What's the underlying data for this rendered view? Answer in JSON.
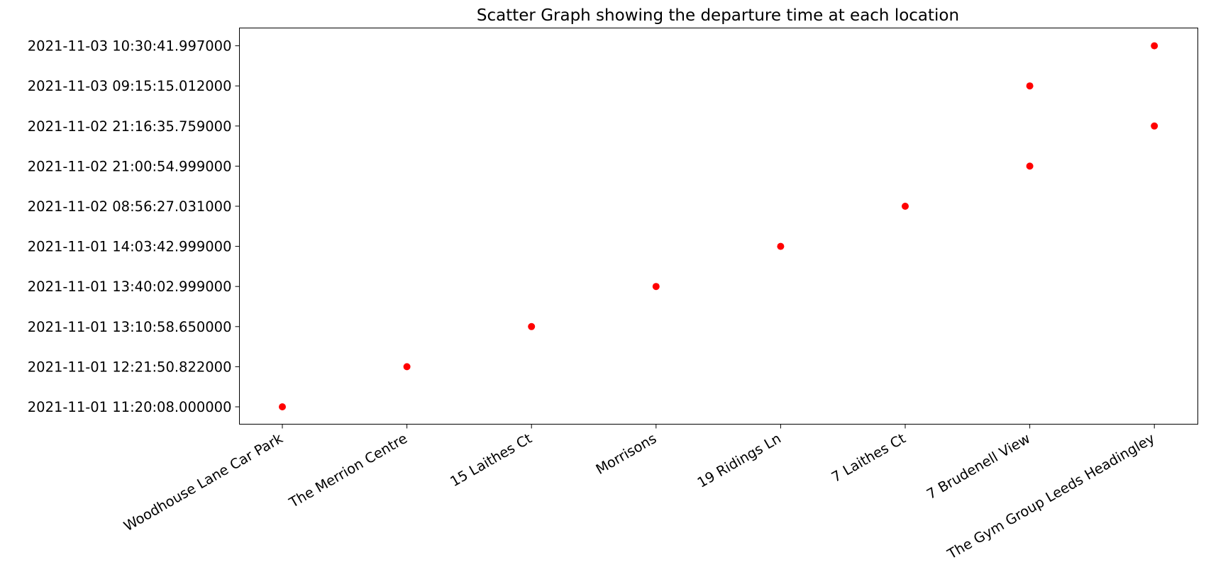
{
  "chart_data": {
    "type": "scatter",
    "title": "Scatter Graph showing the departure time at each location",
    "xlabel": "",
    "ylabel": "",
    "categories": [
      "Woodhouse Lane Car Park",
      "The Merrion Centre",
      "15 Laithes Ct",
      "Morrisons",
      "19 Ridings Ln",
      "7 Laithes Ct",
      "7 Brudenell View",
      "The Gym Group Leeds Headingley"
    ],
    "y_categories": [
      "2021-11-01 11:20:08.000000",
      "2021-11-01 12:21:50.822000",
      "2021-11-01 13:10:58.650000",
      "2021-11-01 13:40:02.999000",
      "2021-11-01 14:03:42.999000",
      "2021-11-02 08:56:27.031000",
      "2021-11-02 21:00:54.999000",
      "2021-11-02 21:16:35.759000",
      "2021-11-03 09:15:15.012000",
      "2021-11-03 10:30:41.997000"
    ],
    "points": [
      {
        "x": "Woodhouse Lane Car Park",
        "y": "2021-11-01 11:20:08.000000"
      },
      {
        "x": "The Merrion Centre",
        "y": "2021-11-01 12:21:50.822000"
      },
      {
        "x": "15 Laithes Ct",
        "y": "2021-11-01 13:10:58.650000"
      },
      {
        "x": "Morrisons",
        "y": "2021-11-01 13:40:02.999000"
      },
      {
        "x": "19 Ridings Ln",
        "y": "2021-11-01 14:03:42.999000"
      },
      {
        "x": "7 Laithes Ct",
        "y": "2021-11-02 08:56:27.031000"
      },
      {
        "x": "7 Brudenell View",
        "y": "2021-11-02 21:00:54.999000"
      },
      {
        "x": "The Gym Group Leeds Headingley",
        "y": "2021-11-02 21:16:35.759000"
      },
      {
        "x": "7 Brudenell View",
        "y": "2021-11-03 09:15:15.012000"
      },
      {
        "x": "The Gym Group Leeds Headingley",
        "y": "2021-11-03 10:30:41.997000"
      }
    ],
    "marker_color": "#ff0000",
    "grid": false,
    "legend": "none",
    "y_axis_scale": "categorical (ordered timestamps)"
  }
}
